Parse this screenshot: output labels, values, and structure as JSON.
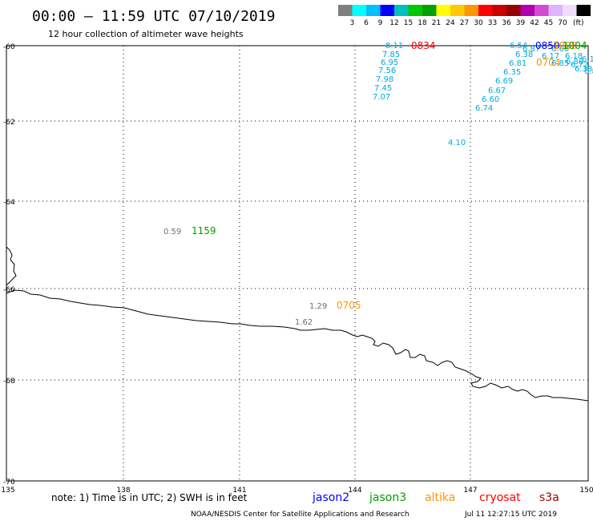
{
  "header": {
    "title": "00:00 – 11:59 UTC 07/10/2019",
    "subtitle": "12 hour collection of altimeter wave heights"
  },
  "legend": {
    "colors": [
      "#7f7f7f",
      "#00ffff",
      "#00bfff",
      "#0000ff",
      "#00bfbf",
      "#00c800",
      "#00a000",
      "#ffff00",
      "#ffc800",
      "#ff9600",
      "#ff0000",
      "#c80000",
      "#960000",
      "#b000b0",
      "#d24bd2",
      "#dcb4ff",
      "#f0dcff",
      "#000000"
    ],
    "labels": [
      "3",
      "6",
      "9",
      "12",
      "15",
      "18",
      "21",
      "24",
      "27",
      "30",
      "33",
      "36",
      "39",
      "42",
      "45",
      "70"
    ],
    "unit": "(ft)"
  },
  "axes": {
    "lat_labels": [
      "-60",
      "-62",
      "-64",
      "-66",
      "-68",
      "-70"
    ],
    "lon_labels": [
      "135",
      "138",
      "141",
      "144",
      "147",
      "150"
    ]
  },
  "track_colors": {
    "jason2": "#0000ff",
    "jason3": "#00a000",
    "altika": "#ff9600",
    "cryosat": "#ff0000",
    "s3a": "#a00000",
    "values": "#00aadd",
    "gray": "#707070"
  },
  "observations": {
    "track1_values": [
      "8.11",
      "7.85",
      "6.95",
      "7.56",
      "7.98",
      "7.45",
      "7.07"
    ],
    "track2_values": [
      "6.74",
      "6.60",
      "6.67",
      "6.69",
      "6.35",
      "6.81",
      "6.38",
      "6.54",
      "6.87",
      "6.60",
      "6.17",
      "6.18",
      "6.85",
      "6.86",
      "6.72",
      "6.18",
      "6.38",
      "6.8"
    ],
    "single_value": "4.10",
    "gray_values": [
      "0.59",
      "1.29",
      "1.62"
    ],
    "times": {
      "cryosat": "0834",
      "jason3_a": "1159",
      "altika_a": "0705",
      "altika_b": "0704",
      "jason2_a": "0850",
      "altika_c": "1000",
      "jason3_b": "1004"
    }
  },
  "footer": {
    "note": "note: 1) Time is in UTC; 2) SWH is in feet",
    "satellites": [
      "jason2",
      "jason3",
      "altika",
      "cryosat",
      "s3a"
    ],
    "credit": "NOAA/NESDIS Center for Satellite Applications and Research",
    "timestamp": "Jul 11 12:27:15 UTC 2019"
  }
}
